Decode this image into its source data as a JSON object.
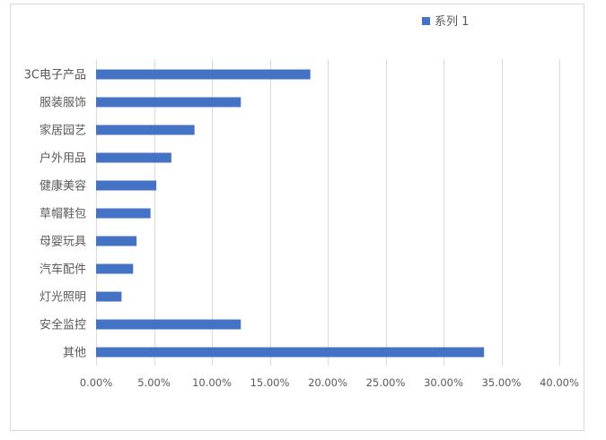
{
  "chart_data": {
    "type": "bar",
    "orientation": "horizontal",
    "categories": [
      "3C电子产品",
      "服装服饰",
      "家居园艺",
      "户外用品",
      "健康美容",
      "草帽鞋包",
      "母婴玩具",
      "汽车配件",
      "灯光照明",
      "安全监控",
      "其他"
    ],
    "series": [
      {
        "name": "系列 1",
        "values": [
          0.185,
          0.125,
          0.085,
          0.065,
          0.052,
          0.047,
          0.035,
          0.032,
          0.022,
          0.125,
          0.335
        ],
        "color": "#4472c4"
      }
    ],
    "xlim": [
      0,
      0.4
    ],
    "xticks": [
      0,
      0.05,
      0.1,
      0.15,
      0.2,
      0.25,
      0.3,
      0.35,
      0.4
    ],
    "xtick_labels": [
      "0.00%",
      "5.00%",
      "10.00%",
      "15.00%",
      "20.00%",
      "25.00%",
      "30.00%",
      "35.00%",
      "40.00%"
    ],
    "grid": "vertical",
    "legend_position": "top-right",
    "title": "",
    "xlabel": "",
    "ylabel": ""
  }
}
